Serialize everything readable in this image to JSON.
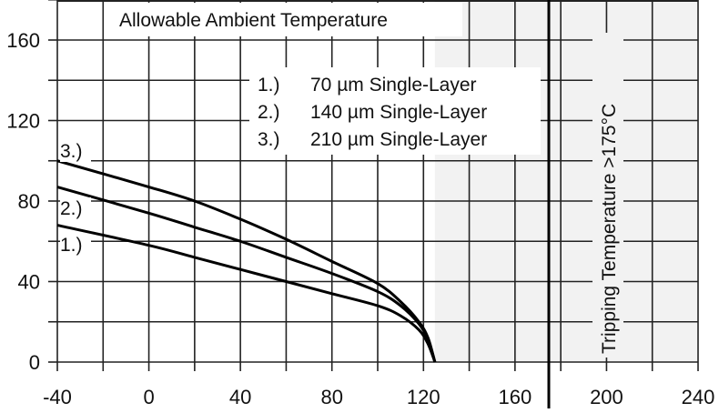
{
  "chart_data": {
    "type": "line",
    "title": "Allowable Ambient Temperature",
    "xlabel": "",
    "ylabel": "",
    "xlim": [
      -40,
      240
    ],
    "ylim": [
      0,
      180
    ],
    "x_ticks": [
      -40,
      0,
      40,
      80,
      120,
      160,
      200,
      240
    ],
    "y_ticks": [
      0,
      40,
      80,
      120,
      160
    ],
    "x_grid_step": 20,
    "y_grid_step": 20,
    "grid": true,
    "legend": {
      "position": "upper-center",
      "entries": [
        {
          "marker": "1.)",
          "label": "70 µm Single-Layer"
        },
        {
          "marker": "2.)",
          "label": "140 µm Single-Layer"
        },
        {
          "marker": "3.)",
          "label": "210 µm Single-Layer"
        }
      ]
    },
    "series": [
      {
        "name": "1.) 70 µm Single-Layer",
        "curve_label": "1.)",
        "x": [
          -40,
          0,
          20,
          40,
          60,
          80,
          100,
          110,
          118,
          122,
          125
        ],
        "y": [
          68,
          58,
          52,
          46,
          40,
          34,
          28,
          23,
          16,
          9,
          0
        ]
      },
      {
        "name": "2.) 140 µm Single-Layer",
        "curve_label": "2.)",
        "x": [
          -40,
          0,
          20,
          40,
          60,
          80,
          100,
          110,
          118,
          122,
          125
        ],
        "y": [
          87,
          74,
          67,
          60,
          52,
          44,
          35,
          28,
          19,
          11,
          0
        ]
      },
      {
        "name": "3.) 210 µm Single-Layer",
        "curve_label": "3.)",
        "x": [
          -40,
          0,
          20,
          40,
          60,
          80,
          100,
          110,
          118,
          122,
          125
        ],
        "y": [
          100,
          87,
          80,
          71,
          61,
          50,
          39,
          30,
          20,
          12,
          0
        ]
      }
    ],
    "annotations": [
      {
        "type": "vline",
        "x": 175,
        "label": "Tripping Temperature >175°C",
        "style": "bold"
      },
      {
        "type": "shaded_region",
        "x_from": 125,
        "x_to": 240,
        "color": "#f2f2f2"
      }
    ]
  },
  "colors": {
    "background": "#ffffff",
    "shaded": "#f2f2f2",
    "grid": "#222222",
    "curve": "#000000"
  }
}
